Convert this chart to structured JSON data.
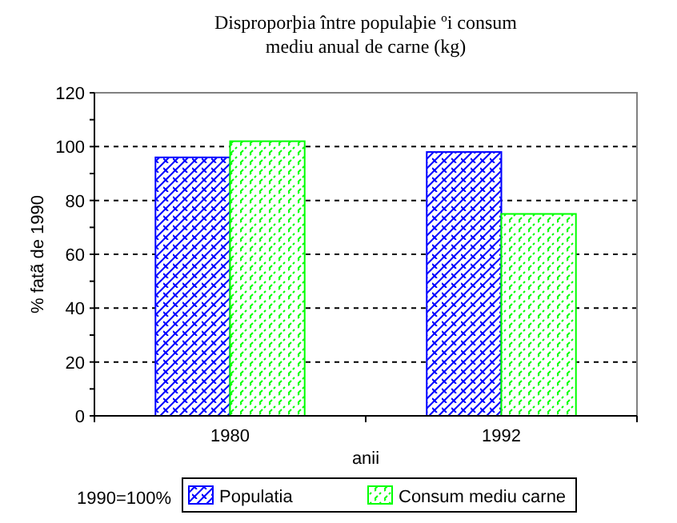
{
  "chart_data": {
    "type": "bar",
    "title": "Disproporþia între populaþie ºi consum\nmediu anual de carne (kg)",
    "xlabel": "anii",
    "ylabel": "% fatã de 1990",
    "categories": [
      "1980",
      "1992"
    ],
    "series": [
      {
        "name": "Populatia",
        "color": "#0000ff",
        "values": [
          96,
          98
        ]
      },
      {
        "name": "Consum mediu carne",
        "color": "#00ff00",
        "values": [
          102,
          75
        ]
      }
    ],
    "ylim": [
      0,
      120
    ],
    "yticks": [
      0,
      {
        "value": 10,
        "label": null
      },
      20,
      {
        "value": 30,
        "label": null
      },
      40,
      {
        "value": 50,
        "label": null
      },
      60,
      {
        "value": 70,
        "label": null
      },
      80,
      {
        "value": 90,
        "label": null
      },
      100,
      {
        "value": 110,
        "label": null
      },
      120
    ],
    "grid": "y",
    "legend": "bottom",
    "annotations": [
      "1990=100%"
    ]
  }
}
